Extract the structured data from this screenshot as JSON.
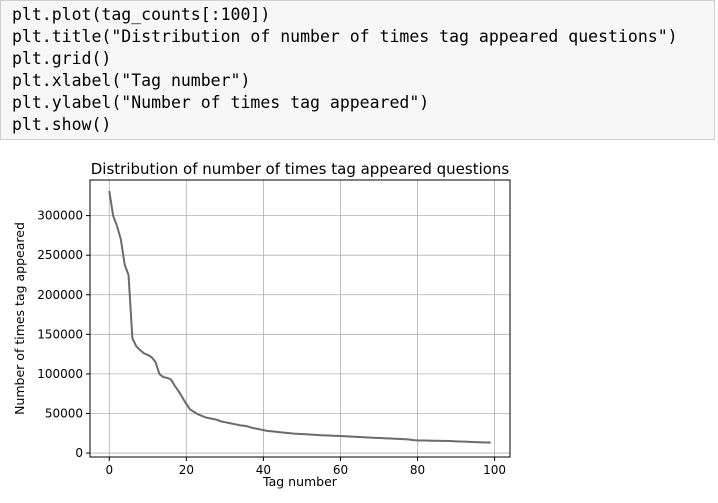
{
  "code_cell": {
    "lines": [
      "plt.plot(tag_counts[:100])",
      "plt.title(\"Distribution of number of times tag appeared questions\")",
      "plt.grid()",
      "plt.xlabel(\"Tag number\")",
      "plt.ylabel(\"Number of times tag appeared\")",
      "plt.show()"
    ]
  },
  "chart_data": {
    "type": "line",
    "title": "Distribution of number of times tag appeared questions",
    "xlabel": "Tag number",
    "ylabel": "Number of times tag appeared",
    "xlim": [
      -5,
      104
    ],
    "ylim": [
      -5000,
      345000
    ],
    "grid": true,
    "xticks": [
      0,
      20,
      40,
      60,
      80,
      100
    ],
    "xtick_labels": [
      "0",
      "20",
      "40",
      "60",
      "80",
      "100"
    ],
    "yticks": [
      0,
      50000,
      100000,
      150000,
      200000,
      250000,
      300000
    ],
    "ytick_labels": [
      "0",
      "50000",
      "100000",
      "150000",
      "200000",
      "250000",
      "300000"
    ],
    "line_color": "#6b6b6b",
    "series": [
      {
        "values": [
          331000,
          300000,
          287000,
          270000,
          238000,
          225000,
          145000,
          135000,
          130000,
          126000,
          124000,
          121000,
          115000,
          100000,
          96000,
          95000,
          93000,
          85000,
          78000,
          70000,
          62000,
          55000,
          52000,
          49000,
          47000,
          45000,
          44000,
          43000,
          42000,
          40000,
          39000,
          38000,
          37000,
          36000,
          35000,
          34500,
          33500,
          32000,
          31000,
          30000,
          29000,
          28000,
          27500,
          27000,
          26500,
          26000,
          25500,
          25000,
          24500,
          24200,
          24000,
          23700,
          23400,
          23100,
          22800,
          22500,
          22300,
          22100,
          21900,
          21700,
          21500,
          21200,
          21000,
          20700,
          20500,
          20200,
          20000,
          19700,
          19500,
          19200,
          19000,
          18800,
          18600,
          18400,
          18100,
          17900,
          17600,
          17400,
          17000,
          16300,
          16000,
          15900,
          15800,
          15700,
          15600,
          15500,
          15400,
          15300,
          15200,
          15000,
          14800,
          14600,
          14400,
          14200,
          14000,
          13800,
          13600,
          13500,
          13400,
          13300
        ]
      }
    ]
  }
}
